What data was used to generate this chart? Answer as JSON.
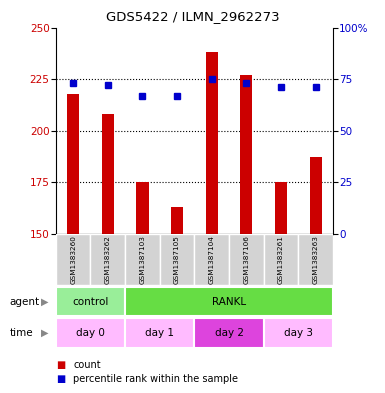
{
  "title": "GDS5422 / ILMN_2962273",
  "samples": [
    "GSM1383260",
    "GSM1383262",
    "GSM1387103",
    "GSM1387105",
    "GSM1387104",
    "GSM1387106",
    "GSM1383261",
    "GSM1383263"
  ],
  "counts": [
    218,
    208,
    175,
    163,
    238,
    227,
    175,
    187
  ],
  "percentiles": [
    73,
    72,
    67,
    67,
    75,
    73,
    71,
    71
  ],
  "ylim_left": [
    150,
    250
  ],
  "ylim_right": [
    0,
    100
  ],
  "yticks_left": [
    150,
    175,
    200,
    225,
    250
  ],
  "yticks_right": [
    0,
    25,
    50,
    75,
    100
  ],
  "bar_color": "#cc0000",
  "dot_color": "#0000cc",
  "agent_data": [
    {
      "label": "control",
      "start": 0,
      "end": 2,
      "color": "#99ee99"
    },
    {
      "label": "RANKL",
      "start": 2,
      "end": 8,
      "color": "#66dd44"
    }
  ],
  "time_data": [
    {
      "label": "day 0",
      "start": 0,
      "end": 2,
      "color": "#ffbbff"
    },
    {
      "label": "day 1",
      "start": 2,
      "end": 4,
      "color": "#ffbbff"
    },
    {
      "label": "day 2",
      "start": 4,
      "end": 6,
      "color": "#dd44dd"
    },
    {
      "label": "day 3",
      "start": 6,
      "end": 8,
      "color": "#ffbbff"
    }
  ],
  "grid_dotted_at": [
    175,
    200,
    225
  ],
  "bg_color": "#ffffff",
  "sample_bg_color": "#d3d3d3",
  "n_samples": 8,
  "bar_width": 0.35
}
